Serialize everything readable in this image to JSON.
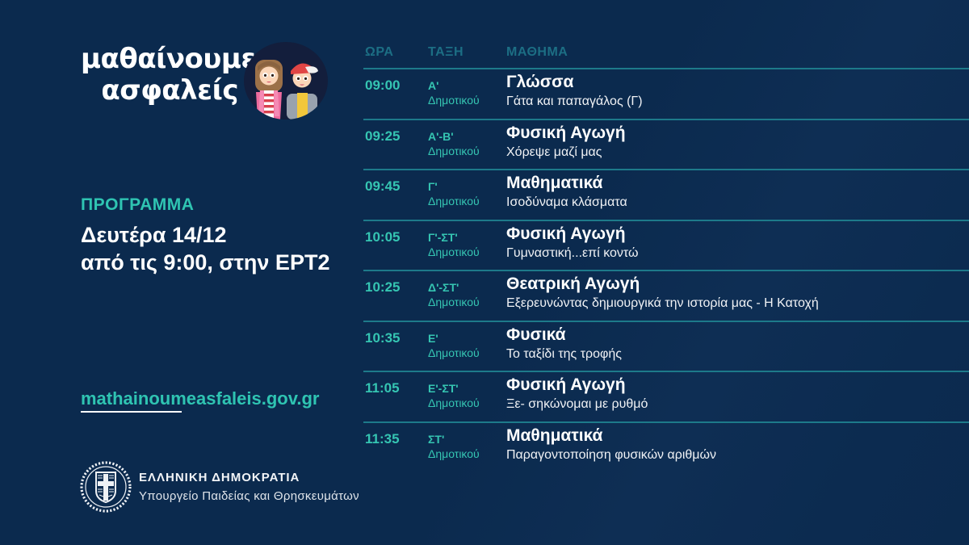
{
  "theme": {
    "background": "#0b2a4e",
    "accent_teal": "#2fc4b2",
    "muted_teal_header": "#1c6e84",
    "separator_line": "#1d7a8a",
    "text_white": "#ffffff",
    "logo_circle_navy": "#131e3c"
  },
  "logo": {
    "line1": "μαθαίνουμε",
    "line2": "ασφαλείς",
    "illustration": "two-children-illustration"
  },
  "sidebar": {
    "program_label": "ΠΡΟΓΡΑΜΜΑ",
    "date_line1": "Δευτέρα 14/12",
    "date_line2": "από τις 9:00, στην ΕΡΤ2",
    "website": "mathainoumeasfaleis.gov.gr",
    "government": {
      "emblem": "greek-republic-emblem",
      "name": "ΕΛΛΗΝΙΚΗ ΔΗΜΟΚΡΑΤΙΑ",
      "ministry": "Υπουργείο Παιδείας και Θρησκευμάτων"
    }
  },
  "schedule": {
    "columns": [
      "ΩΡΑ",
      "ΤΑΞΗ",
      "ΜΑΘΗΜΑ"
    ],
    "rows": [
      {
        "time": "09:00",
        "grade": "Α'",
        "grade_level": "Δημοτικού",
        "subject": "Γλώσσα",
        "topic": "Γάτα και παπαγάλος (Γ)"
      },
      {
        "time": "09:25",
        "grade": "Α'-Β'",
        "grade_level": "Δημοτικού",
        "subject": "Φυσική Αγωγή",
        "topic": "Χόρεψε μαζί μας"
      },
      {
        "time": "09:45",
        "grade": "Γ'",
        "grade_level": "Δημοτικού",
        "subject": "Μαθηματικά",
        "topic": "Ισοδύναμα κλάσματα"
      },
      {
        "time": "10:05",
        "grade": "Γ'-ΣΤ'",
        "grade_level": "Δημοτικού",
        "subject": "Φυσική Αγωγή",
        "topic": "Γυμναστική...επί κοντώ"
      },
      {
        "time": "10:25",
        "grade": "Δ'-ΣΤ'",
        "grade_level": "Δημοτικού",
        "subject": "Θεατρική Αγωγή",
        "topic": "Εξερευνώντας δημιουργικά την ιστορία μας - Η Κατοχή"
      },
      {
        "time": "10:35",
        "grade": "Ε'",
        "grade_level": "Δημοτικού",
        "subject": "Φυσικά",
        "topic": "Το ταξίδι της τροφής"
      },
      {
        "time": "11:05",
        "grade": "Ε'-ΣΤ'",
        "grade_level": "Δημοτικού",
        "subject": "Φυσική Αγωγή",
        "topic": "Ξε- σηκώνομαι με ρυθμό"
      },
      {
        "time": "11:35",
        "grade": "ΣΤ'",
        "grade_level": "Δημοτικού",
        "subject": "Μαθηματικά",
        "topic": "Παραγοντοποίηση φυσικών αριθμών"
      }
    ]
  }
}
